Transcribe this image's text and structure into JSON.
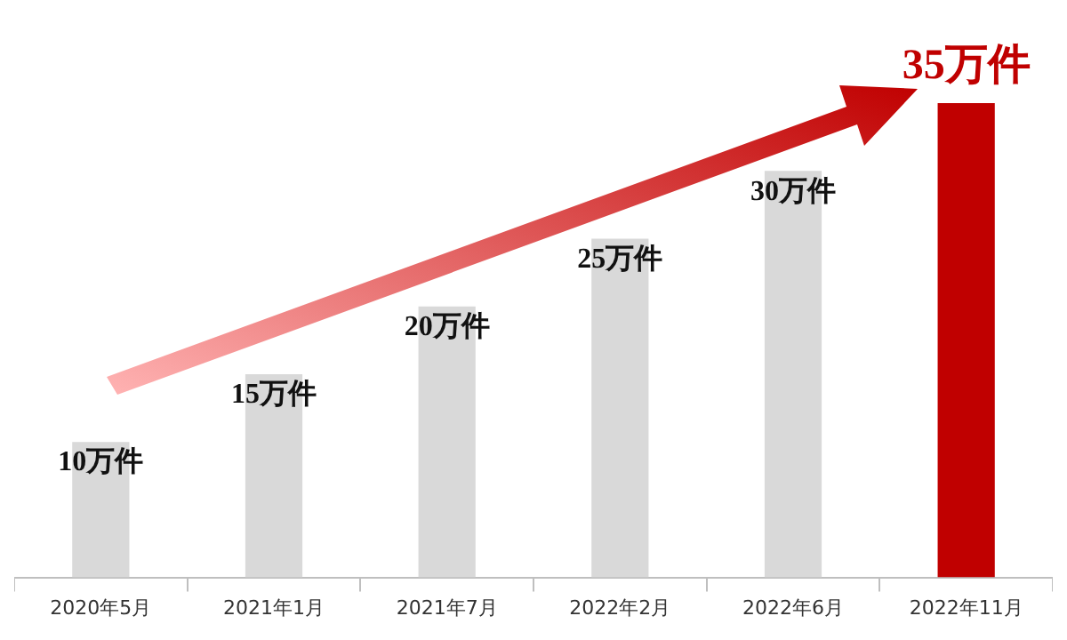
{
  "chart_data": {
    "type": "bar",
    "categories": [
      "2020年5月",
      "2021年1月",
      "2021年7月",
      "2022年2月",
      "2022年6月",
      "2022年11月"
    ],
    "values": [
      10,
      15,
      20,
      25,
      30,
      35
    ],
    "colors": [
      "#d9d9d9",
      "#d9d9d9",
      "#d9d9d9",
      "#d9d9d9",
      "#d9d9d9",
      "#c00000"
    ],
    "value_labels": [
      "10万件",
      "15万件",
      "20万件",
      "25万件",
      "30万件",
      "35万件"
    ],
    "legend": false
  }
}
